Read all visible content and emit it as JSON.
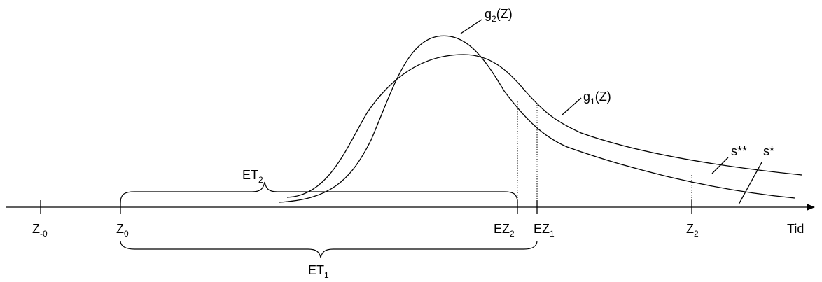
{
  "axis": {
    "label": "Tid",
    "ticks": [
      {
        "id": "z-minus-0",
        "base": "Z",
        "sub": "-0"
      },
      {
        "id": "z0",
        "base": "Z",
        "sub": "0"
      },
      {
        "id": "ez2",
        "base": "EZ",
        "sub": "2"
      },
      {
        "id": "ez1",
        "base": "EZ",
        "sub": "1"
      },
      {
        "id": "z2",
        "base": "Z",
        "sub": "2"
      }
    ]
  },
  "curves": {
    "g2": {
      "base": "g",
      "sub": "2",
      "suffix": "(Z)"
    },
    "g1": {
      "base": "g",
      "sub": "1",
      "suffix": "(Z)"
    }
  },
  "braces": {
    "et2": {
      "base": "ET",
      "sub": "2"
    },
    "et1": {
      "base": "ET",
      "sub": "1"
    }
  },
  "markers": {
    "s_double_star": "s**",
    "s_star": "s*"
  }
}
